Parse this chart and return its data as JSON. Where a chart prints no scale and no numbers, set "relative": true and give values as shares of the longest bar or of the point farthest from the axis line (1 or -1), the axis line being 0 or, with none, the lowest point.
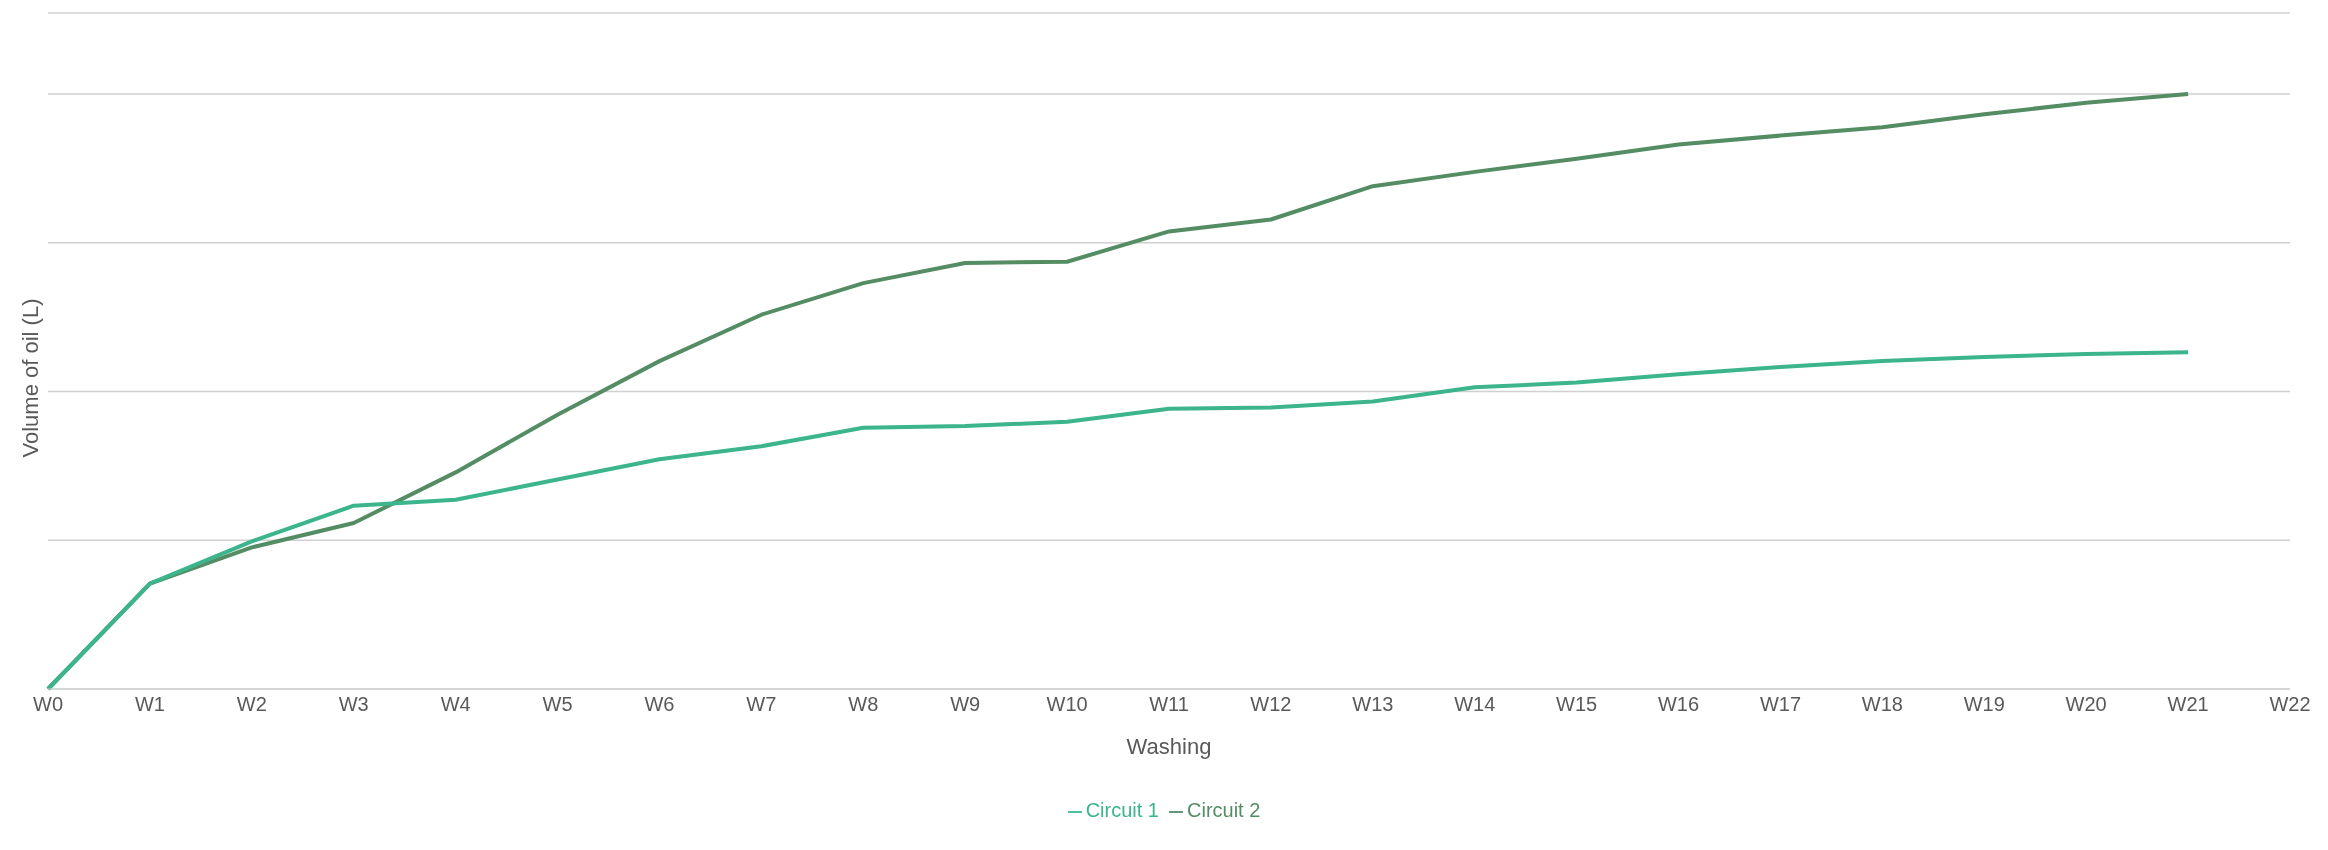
{
  "chart_data": {
    "type": "line",
    "xlabel": "Washing",
    "ylabel": "Volume of oil (L)",
    "relative": true,
    "grid": "y",
    "legend": "bottom",
    "marker": "none",
    "line_style": "solid",
    "categories": [
      "W0",
      "W1",
      "W2",
      "W3",
      "W4",
      "W5",
      "W6",
      "W7",
      "W8",
      "W9",
      "W10",
      "W11",
      "W12",
      "W13",
      "W14",
      "W15",
      "W16",
      "W17",
      "W18",
      "W19",
      "W20",
      "W21",
      "W22"
    ],
    "series": [
      {
        "name": "Circuit 2",
        "color": "#548c64",
        "values": [
          0,
          0.177,
          0.238,
          0.279,
          0.364,
          0.461,
          0.551,
          0.629,
          0.682,
          0.716,
          0.718,
          0.769,
          0.789,
          0.845,
          0.869,
          0.891,
          0.915,
          0.93,
          0.944,
          0.966,
          0.985,
          1,
          null
        ]
      },
      {
        "name": "Circuit 1",
        "color": "#3cb48c",
        "values": [
          0,
          0.177,
          0.248,
          0.308,
          0.318,
          0.352,
          0.386,
          0.408,
          0.439,
          0.442,
          0.449,
          0.471,
          0.473,
          0.483,
          0.507,
          0.515,
          0.529,
          0.541,
          0.551,
          0.558,
          0.563,
          0.566,
          null
        ]
      }
    ]
  }
}
